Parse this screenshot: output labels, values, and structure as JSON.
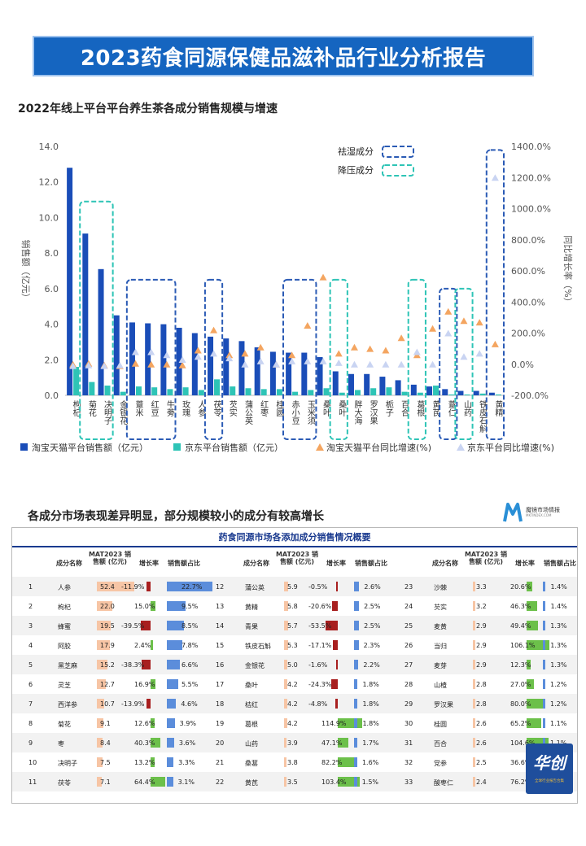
{
  "banner": {
    "title": "2023药食同源保健品滋补品行业分析报告"
  },
  "chart_title": "2022年线上平台平台养生茶各成分销售规模与增速",
  "chart_data": {
    "type": "bar",
    "categories": [
      "枸杞",
      "菊花",
      "决明子",
      "金银花",
      "薏米",
      "红豆",
      "牛蒡",
      "玫瑰",
      "人参",
      "茯苓",
      "芡实",
      "蒲公英",
      "红枣",
      "桂圆",
      "赤小豆",
      "玉米须",
      "桑叶",
      "桑叶",
      "胖大海",
      "罗汉果",
      "栀子",
      "百合",
      "葛根",
      "黄芪",
      "薏仁",
      "山药",
      "铁皮石斛",
      "黄精"
    ],
    "series": [
      {
        "name": "淘宝天猫平台销售额（亿元）",
        "color": "#1a4db8",
        "axis": "left",
        "values": [
          12.8,
          9.1,
          7.1,
          4.5,
          4.1,
          4.05,
          4.0,
          3.8,
          3.5,
          3.3,
          3.2,
          3.05,
          2.7,
          2.45,
          2.4,
          2.4,
          2.15,
          1.35,
          1.2,
          1.2,
          1.05,
          0.85,
          0.6,
          0.5,
          0.35,
          0.25,
          0.25,
          0.15
        ]
      },
      {
        "name": "京东平台销售额（亿元）",
        "color": "#2ec4b6",
        "axis": "left",
        "values": [
          1.6,
          0.75,
          0.55,
          0.2,
          0.5,
          0.45,
          0.35,
          0.45,
          0.3,
          0.9,
          0.5,
          0.4,
          0.35,
          0.35,
          0.2,
          0.3,
          0.4,
          0.15,
          0.3,
          0.4,
          0.45,
          0.2,
          0.15,
          0.55,
          0.05,
          0.05,
          0.1,
          0.05
        ]
      },
      {
        "name": "淘宝天猫平台同比增速(%)",
        "color": "#f4a560",
        "axis": "right",
        "values": [
          0,
          5,
          -5,
          -10,
          5,
          0,
          0,
          -5,
          90,
          220,
          60,
          70,
          110,
          0,
          60,
          250,
          560,
          70,
          110,
          100,
          90,
          170,
          60,
          230,
          340,
          280,
          270,
          130
        ]
      },
      {
        "name": "京东平台同比增速(%)",
        "color": "#c9d4f2",
        "axis": "right",
        "values": [
          -10,
          -5,
          -10,
          -5,
          80,
          80,
          60,
          30,
          50,
          70,
          40,
          0,
          20,
          0,
          20,
          20,
          20,
          10,
          0,
          0,
          0,
          0,
          80,
          0,
          200,
          50,
          70,
          1200
        ]
      }
    ],
    "ylabel": "销售额（亿元）",
    "y2label": "同比增长率（%）",
    "ylim": [
      0,
      14
    ],
    "y2lim": [
      -200,
      1400
    ],
    "yticks": [
      "0.0",
      "2.0",
      "4.0",
      "6.0",
      "8.0",
      "10.0",
      "12.0",
      "14.0"
    ],
    "y2ticks": [
      "-200.0%",
      "0.0%",
      "200.0%",
      "400.0%",
      "600.0%",
      "800.0%",
      "1000.0%",
      "1200.0%",
      "1400.0%"
    ],
    "legend_boxes": [
      {
        "label": "祛湿成分",
        "color": "#2b5bb5"
      },
      {
        "label": "降压成分",
        "color": "#2ec4b6"
      }
    ],
    "highlight_groups": [
      {
        "type": "祛湿",
        "from": 4,
        "to": 6,
        "bottom": 6.5
      },
      {
        "type": "降压",
        "from": 1,
        "to": 2,
        "bottom": 10.9
      },
      {
        "type": "祛湿",
        "from": 9,
        "to": 9,
        "bottom": 6.5
      },
      {
        "type": "祛湿",
        "from": 14,
        "to": 15,
        "bottom": 6.5
      },
      {
        "type": "降压",
        "from": 17,
        "to": 17,
        "bottom": 6.5
      },
      {
        "type": "降压",
        "from": 22,
        "to": 22,
        "bottom": 6.5
      },
      {
        "type": "祛湿",
        "from": 24,
        "to": 24,
        "bottom": 6.0
      },
      {
        "type": "降压",
        "from": 25,
        "to": 25,
        "bottom": 6.0
      },
      {
        "type": "祛湿",
        "from": 27,
        "to": 27,
        "bottom": 13.8
      }
    ]
  },
  "section2": {
    "title": "各成分市场表现差异明显，部分规模较小的成分有较高增长",
    "brand_name": "魔镜市场情报",
    "brand_sub": "MKTINDEX.COM"
  },
  "table": {
    "title": "药食同源市场各添加成分销售情况概要",
    "headers": {
      "name": "成分名称",
      "sales": "MAT2023 销售额 (亿元)",
      "growth": "增长率",
      "share": "销售额占比"
    },
    "rows": [
      [
        {
          "rank": "1",
          "name": "人参",
          "sales": "52.4",
          "sales_v": 52.4,
          "growth": "-11.9%",
          "growth_v": -11.9,
          "share": "22.7%",
          "share_v": 22.7
        },
        {
          "rank": "12",
          "name": "蒲公英",
          "sales": "5.9",
          "sales_v": 5.9,
          "growth": "-0.5%",
          "growth_v": -0.5,
          "share": "2.6%",
          "share_v": 2.6
        },
        {
          "rank": "23",
          "name": "沙棘",
          "sales": "3.3",
          "sales_v": 3.3,
          "growth": "20.6%",
          "growth_v": 20.6,
          "share": "1.4%",
          "share_v": 1.4
        }
      ],
      [
        {
          "rank": "2",
          "name": "枸杞",
          "sales": "22.0",
          "sales_v": 22.0,
          "growth": "15.0%",
          "growth_v": 15.0,
          "share": "9.5%",
          "share_v": 9.5
        },
        {
          "rank": "13",
          "name": "黄精",
          "sales": "5.8",
          "sales_v": 5.8,
          "growth": "-20.6%",
          "growth_v": -20.6,
          "share": "2.5%",
          "share_v": 2.5
        },
        {
          "rank": "24",
          "name": "芡实",
          "sales": "3.2",
          "sales_v": 3.2,
          "growth": "46.3%",
          "growth_v": 46.3,
          "share": "1.4%",
          "share_v": 1.4
        }
      ],
      [
        {
          "rank": "3",
          "name": "蜂蜜",
          "sales": "19.5",
          "sales_v": 19.5,
          "growth": "-39.5%",
          "growth_v": -39.5,
          "share": "8.5%",
          "share_v": 8.5
        },
        {
          "rank": "14",
          "name": "青果",
          "sales": "5.7",
          "sales_v": 5.7,
          "growth": "-53.5%",
          "growth_v": -53.5,
          "share": "2.5%",
          "share_v": 2.5
        },
        {
          "rank": "25",
          "name": "麦黄",
          "sales": "2.9",
          "sales_v": 2.9,
          "growth": "49.4%",
          "growth_v": 49.4,
          "share": "1.3%",
          "share_v": 1.3
        }
      ],
      [
        {
          "rank": "4",
          "name": "阿胶",
          "sales": "17.9",
          "sales_v": 17.9,
          "growth": "2.4%",
          "growth_v": 2.4,
          "share": "7.8%",
          "share_v": 7.8
        },
        {
          "rank": "15",
          "name": "铁皮石斛",
          "sales": "5.3",
          "sales_v": 5.3,
          "growth": "-17.1%",
          "growth_v": -17.1,
          "share": "2.3%",
          "share_v": 2.3
        },
        {
          "rank": "26",
          "name": "当归",
          "sales": "2.9",
          "sales_v": 2.9,
          "growth": "106.1%",
          "growth_v": 106.1,
          "share": "1.3%",
          "share_v": 1.3
        }
      ],
      [
        {
          "rank": "5",
          "name": "黑芝麻",
          "sales": "15.2",
          "sales_v": 15.2,
          "growth": "-38.3%",
          "growth_v": -38.3,
          "share": "6.6%",
          "share_v": 6.6
        },
        {
          "rank": "16",
          "name": "金银花",
          "sales": "5.0",
          "sales_v": 5.0,
          "growth": "-1.6%",
          "growth_v": -1.6,
          "share": "2.2%",
          "share_v": 2.2
        },
        {
          "rank": "27",
          "name": "麦芽",
          "sales": "2.9",
          "sales_v": 2.9,
          "growth": "12.3%",
          "growth_v": 12.3,
          "share": "1.3%",
          "share_v": 1.3
        }
      ],
      [
        {
          "rank": "6",
          "name": "灵芝",
          "sales": "12.7",
          "sales_v": 12.7,
          "growth": "16.9%",
          "growth_v": 16.9,
          "share": "5.5%",
          "share_v": 5.5
        },
        {
          "rank": "17",
          "name": "桑叶",
          "sales": "4.2",
          "sales_v": 4.2,
          "growth": "-24.3%",
          "growth_v": -24.3,
          "share": "1.8%",
          "share_v": 1.8
        },
        {
          "rank": "28",
          "name": "山楂",
          "sales": "2.8",
          "sales_v": 2.8,
          "growth": "27.0%",
          "growth_v": 27.0,
          "share": "1.2%",
          "share_v": 1.2
        }
      ],
      [
        {
          "rank": "7",
          "name": "西洋参",
          "sales": "10.7",
          "sales_v": 10.7,
          "growth": "-13.9%",
          "growth_v": -13.9,
          "share": "4.6%",
          "share_v": 4.6
        },
        {
          "rank": "18",
          "name": "桔红",
          "sales": "4.2",
          "sales_v": 4.2,
          "growth": "-4.8%",
          "growth_v": -4.8,
          "share": "1.8%",
          "share_v": 1.8
        },
        {
          "rank": "29",
          "name": "罗汉果",
          "sales": "2.8",
          "sales_v": 2.8,
          "growth": "80.0%",
          "growth_v": 80.0,
          "share": "1.2%",
          "share_v": 1.2
        }
      ],
      [
        {
          "rank": "8",
          "name": "菊花",
          "sales": "9.1",
          "sales_v": 9.1,
          "growth": "12.6%",
          "growth_v": 12.6,
          "share": "3.9%",
          "share_v": 3.9
        },
        {
          "rank": "19",
          "name": "葛根",
          "sales": "4.2",
          "sales_v": 4.2,
          "growth": "114.9%",
          "growth_v": 114.9,
          "share": "1.8%",
          "share_v": 1.8
        },
        {
          "rank": "30",
          "name": "桂圆",
          "sales": "2.6",
          "sales_v": 2.6,
          "growth": "65.2%",
          "growth_v": 65.2,
          "share": "1.1%",
          "share_v": 1.1
        }
      ],
      [
        {
          "rank": "9",
          "name": "枣",
          "sales": "8.4",
          "sales_v": 8.4,
          "growth": "40.3%",
          "growth_v": 40.3,
          "share": "3.6%",
          "share_v": 3.6
        },
        {
          "rank": "20",
          "name": "山药",
          "sales": "3.9",
          "sales_v": 3.9,
          "growth": "47.1%",
          "growth_v": 47.1,
          "share": "1.7%",
          "share_v": 1.7
        },
        {
          "rank": "31",
          "name": "百合",
          "sales": "2.6",
          "sales_v": 2.6,
          "growth": "104.6%",
          "growth_v": 104.6,
          "share": "1.1%",
          "share_v": 1.1
        }
      ],
      [
        {
          "rank": "10",
          "name": "决明子",
          "sales": "7.5",
          "sales_v": 7.5,
          "growth": "13.2%",
          "growth_v": 13.2,
          "share": "3.3%",
          "share_v": 3.3
        },
        {
          "rank": "21",
          "name": "桑葚",
          "sales": "3.8",
          "sales_v": 3.8,
          "growth": "82.2%",
          "growth_v": 82.2,
          "share": "1.6%",
          "share_v": 1.6
        },
        {
          "rank": "32",
          "name": "党参",
          "sales": "2.5",
          "sales_v": 2.5,
          "growth": "36.6%",
          "growth_v": 36.6,
          "share": "1.1%",
          "share_v": 1.1
        }
      ],
      [
        {
          "rank": "11",
          "name": "茯苓",
          "sales": "7.1",
          "sales_v": 7.1,
          "growth": "64.4%",
          "growth_v": 64.4,
          "share": "3.1%",
          "share_v": 3.1
        },
        {
          "rank": "22",
          "name": "黄芪",
          "sales": "3.5",
          "sales_v": 3.5,
          "growth": "103.4%",
          "growth_v": 103.4,
          "share": "1.5%",
          "share_v": 1.5
        },
        {
          "rank": "33",
          "name": "酸枣仁",
          "sales": "2.4",
          "sales_v": 2.4,
          "growth": "76.2%",
          "growth_v": 76.2,
          "share": "1.0%",
          "share_v": 1.0
        }
      ]
    ]
  },
  "stamp": {
    "text": "华创",
    "sub": "全球行业报告合集"
  },
  "colors": {
    "banner": "#1565c0",
    "pos_growth": "#6cc04a",
    "neg_growth": "#a81f1f",
    "sales_bar": "#f7c5a5",
    "share_bar": "#5b8ddb"
  }
}
